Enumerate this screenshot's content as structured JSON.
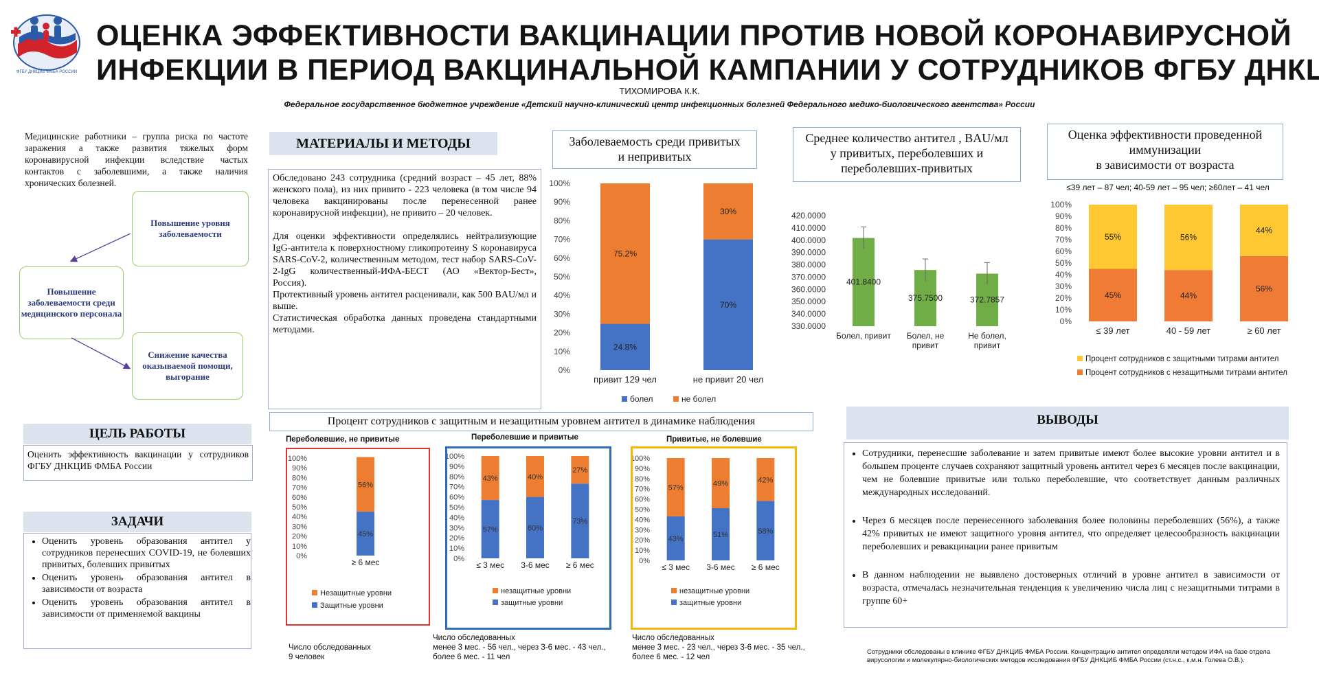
{
  "header": {
    "logo_text": "ФГБУ ДНКЦИБ ФМБА РОССИИ",
    "title_line1": "ОЦЕНКА ЭФФЕКТИВНОСТИ ВАКЦИНАЦИИ ПРОТИВ НОВОЙ КОРОНАВИРУСНОЙ",
    "title_line2": "ИНФЕКЦИИ В ПЕРИОД ВАКЦИНАЛЬНОЙ КАМПАНИИ У СОТРУДНИКОВ ФГБУ ДНКЦИБ",
    "author": "ТИХОМИРОВА К.К.",
    "org": "Федеральное государственное бюджетное учреждение «Детский научно-клинический центр инфекционных болезней Федерального медико-биологического агентства» России"
  },
  "intro": {
    "text": "Медицинские работники – группа риска по частоте заражения а также развития тяжелых форм коронавирусной инфекции вследствие частых контактов с заболевшими, а также наличия хронических болезней.",
    "flow_top": "Повышение уровня заболеваемости",
    "flow_left": "Повышение заболеваемости среди медицинского персонала",
    "flow_bottom": "Снижение качества оказываемой помощи, выгорание"
  },
  "goal": {
    "title": "ЦЕЛЬ РАБОТЫ",
    "text": "Оценить эффективность вакцинации у сотрудников ФГБУ ДНКЦИБ ФМБА России"
  },
  "tasks": {
    "title": "ЗАДАЧИ",
    "items": [
      "Оценить уровень образования антител у сотрудников перенесших COVID-19, не болевших привитых, болевших привитых",
      "Оценить уровень образования антител в зависимости от возраста",
      "Оценить уровень образования антител в зависимости от применяемой вакцины"
    ]
  },
  "methods": {
    "title": "МАТЕРИАЛЫ И МЕТОДЫ",
    "p1": "Обследовано 243 сотрудника (средний возраст – 45 лет, 88% женского пола), из них привито - 223 человека (в том числе 94 человека вакцинированы после перенесенной ранее коронавирусной инфекции), не привито – 20 человек.",
    "p2": "Для оценки эффективности определялись нейтрализующие IgG-антитела к поверхностному гликопротеину S коронавируса SARS-CoV-2, количественным методом, тест набор SARS-CoV-2-IgG количественный-ИФА-БЕСТ (АО «Вектор-Бест», Россия).",
    "p3": "Протективный уровень антител расценивали, как 500 BAU/мл и выше.",
    "p4": "Статистическая обработка данных проведена стандартными методами."
  },
  "chart1": {
    "title_line1": "Заболеваемость среди привитых",
    "title_line2": "и непривитых"
  },
  "chart2": {
    "title_line1": "Среднее количество антител , BAU/мл",
    "title_line2": "у привитых, переболевших и",
    "title_line3": "переболевших-привитых"
  },
  "chart3": {
    "title_line1": "Оценка эффективности проведенной",
    "title_line2": "иммунизации",
    "title_line3": "в зависимости от возраста",
    "subtitle": "≤39 лет – 87 чел; 40-59 лет – 95 чел; ≥60лет – 41 чел"
  },
  "dynamics": {
    "title": "Процент сотрудников с защитным и незащитным уровнем антител в динамике наблюдения",
    "g1_title": "Переболевшие, не привитые",
    "g2_title": "Переболевшие и привитые",
    "g3_title": "Привитые, не болевшие",
    "g1_note_l1": "Число обследованных",
    "g1_note_l2": "9 человек",
    "g2_note_l1": "Число обследованных",
    "g2_note_l2": "менее 3 мес. - 56 чел., через 3-6 мес. - 43 чел.,",
    "g2_note_l3": "более 6 мес. - 11 чел",
    "g3_note_l1": "Число обследованных",
    "g3_note_l2": "менее 3 мес. - 23 чел., через 3-6 мес. - 35 чел.,",
    "g3_note_l3": "более 6 мес. - 12 чел"
  },
  "conclusions": {
    "title": "ВЫВОДЫ",
    "items": [
      "Сотрудники, перенесшие заболевание и затем привитые имеют более высокие уровни антител и в большем проценте случаев сохраняют защитный уровень антител через 6 месяцев после вакцинации, чем не болевшие привитые или только переболевшие, что соответствует данным различных международных исследований.",
      "Через 6 месяцев после перенесенного заболевания более половины переболевших (56%), а также 42% привитых не имеют защитного уровня антител, что определяет целесообразность вакцинации переболевших и ревакцинации ранее привитым",
      "В данном наблюдении не выявлено достоверных отличий в уровне антител в зависимости от возраста, отмечалась незначительная тенденция к увеличению числа лиц с незащитными титрами в группе 60+"
    ]
  },
  "footnote": "Сотрудники обследованы в клинике ФГБУ ДНКЦИБ ФМБА России. Концентрацию антител определяли методом ИФА на базе отдела вирусологии и молекулярно-биологических методов исследования ФГБУ ДНКЦИБ ФМБА России (ст.н.с., к.м.н. Голева О.В.).",
  "colors": {
    "blue": "#4472c4",
    "orange": "#ed7d31",
    "green": "#70ad47",
    "yellow": "#ffc000",
    "red_frame": "#e0342c",
    "blue_frame": "#2e6bbf",
    "yellow_frame": "#f5b80a"
  },
  "chart_data": [
    {
      "type": "bar",
      "stacked": true,
      "categories": [
        "привит 129 чел",
        "не привит 20 чел"
      ],
      "series": [
        {
          "name": "болел",
          "values": [
            24.8,
            70
          ],
          "labels": [
            "24.8%",
            "70%"
          ]
        },
        {
          "name": "не болел",
          "values": [
            75.2,
            30
          ],
          "labels": [
            "75.2%",
            "30%"
          ]
        }
      ],
      "yticks": [
        "0%",
        "10%",
        "20%",
        "30%",
        "40%",
        "50%",
        "60%",
        "70%",
        "80%",
        "90%",
        "100%"
      ],
      "ylim": [
        0,
        100
      ],
      "legend": "bottom"
    },
    {
      "type": "bar",
      "categories": [
        "Болел, привит",
        "Болел, не привит",
        "Не болел, привит"
      ],
      "values": [
        401.84,
        375.75,
        372.7857
      ],
      "labels": [
        "401.8400",
        "375.7500",
        "372.7857"
      ],
      "error": [
        9,
        9,
        9
      ],
      "yticks": [
        "330.0000",
        "340.0000",
        "350.0000",
        "360.0000",
        "370.0000",
        "380.0000",
        "390.0000",
        "400.0000",
        "410.0000",
        "420.0000"
      ],
      "ylim": [
        330,
        420
      ]
    },
    {
      "type": "bar",
      "stacked": true,
      "categories": [
        "≤ 39 лет",
        "40 - 59 лет",
        "≥ 60 лет"
      ],
      "series": [
        {
          "name": "Процент сотрудников с незащитными титрами антител",
          "values": [
            45,
            44,
            56
          ],
          "labels": [
            "45%",
            "44%",
            "56%"
          ]
        },
        {
          "name": "Процент сотрудников с защитными титрами антител",
          "values": [
            55,
            56,
            44
          ],
          "labels": [
            "55%",
            "56%",
            "44%"
          ]
        }
      ],
      "yticks": [
        "0%",
        "10%",
        "20%",
        "30%",
        "40%",
        "50%",
        "60%",
        "70%",
        "80%",
        "90%",
        "100%"
      ],
      "ylim": [
        0,
        100
      ],
      "legend": "bottom"
    },
    {
      "type": "bar",
      "stacked": true,
      "categories": [
        "≥ 6 мес"
      ],
      "series": [
        {
          "name": "Защитные уровни",
          "values": [
            45
          ],
          "labels": [
            "45%"
          ]
        },
        {
          "name": "Незащитные уровни",
          "values": [
            56
          ],
          "labels": [
            "56%"
          ]
        }
      ],
      "yticks": [
        "0%",
        "10%",
        "20%",
        "30%",
        "40%",
        "50%",
        "60%",
        "70%",
        "80%",
        "90%",
        "100%"
      ],
      "ylim": [
        0,
        100
      ],
      "legend": "bottom"
    },
    {
      "type": "bar",
      "stacked": true,
      "categories": [
        "≤ 3 мес",
        "3-6 мес",
        "≥ 6 мес"
      ],
      "series": [
        {
          "name": "защитные уровни",
          "values": [
            57,
            60,
            73
          ],
          "labels": [
            "57%",
            "60%",
            "73%"
          ]
        },
        {
          "name": "незащитные уровни",
          "values": [
            43,
            40,
            27
          ],
          "labels": [
            "43%",
            "40%",
            "27%"
          ]
        }
      ],
      "yticks": [
        "0%",
        "10%",
        "20%",
        "30%",
        "40%",
        "50%",
        "60%",
        "70%",
        "80%",
        "90%",
        "100%"
      ],
      "ylim": [
        0,
        100
      ],
      "legend": "bottom"
    },
    {
      "type": "bar",
      "stacked": true,
      "categories": [
        "≤ 3 мес",
        "3-6 мес",
        "≥ 6 мес"
      ],
      "series": [
        {
          "name": "защитные уровни",
          "values": [
            43,
            51,
            58
          ],
          "labels": [
            "43%",
            "51%",
            "58%"
          ]
        },
        {
          "name": "незащитные уровни",
          "values": [
            57,
            49,
            42
          ],
          "labels": [
            "57%",
            "49%",
            "42%"
          ]
        }
      ],
      "yticks": [
        "0%",
        "10%",
        "20%",
        "30%",
        "40%",
        "50%",
        "60%",
        "70%",
        "80%",
        "90%",
        "100%"
      ],
      "ylim": [
        0,
        100
      ],
      "legend": "bottom"
    }
  ]
}
